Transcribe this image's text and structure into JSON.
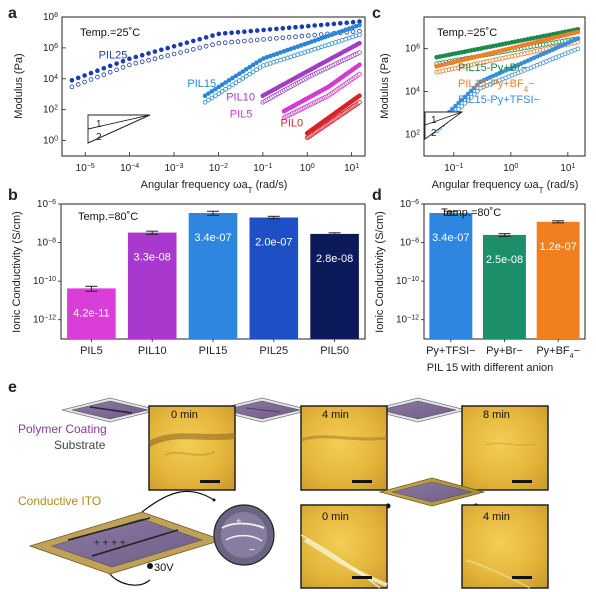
{
  "panel_labels": {
    "a": "a",
    "b": "b",
    "c": "c",
    "d": "d",
    "e": "e"
  },
  "colors": {
    "PIL25": "#1a3cb0",
    "PIL15": "#2c86d6",
    "PIL10": "#a23cc7",
    "PIL5": "#d43ad3",
    "PIL0": "#d8232a",
    "Br": "#1c8a4e",
    "BF4": "#f07f27",
    "TFSI": "#3a8fdc",
    "bar_PIL5": "#d93ed8",
    "bar_PIL10": "#a938cf",
    "bar_PIL15": "#2f86e0",
    "bar_PIL25": "#1f4fc4",
    "bar_PIL50": "#0c1a5c",
    "bar_TFSI": "#2f86e0",
    "bar_Br": "#1c8e6a",
    "bar_BF4": "#f07f1f"
  },
  "chart_data": [
    {
      "id": "a",
      "type": "scatter",
      "annotation": "Temp.=25˚C",
      "xlabel": "Angular frequency ωa",
      "xlabel_sub": "T",
      "xlabel_unit": " (rad/s)",
      "ylabel": "Modulus (Pa)",
      "xscale": "log",
      "yscale": "log",
      "xlim": [
        3e-06,
        20
      ],
      "ylim": [
        0.1,
        100000000
      ],
      "xticks": [
        {
          "v": 1e-05,
          "b": "10",
          "e": "−5"
        },
        {
          "v": 0.0001,
          "b": "10",
          "e": "−4"
        },
        {
          "v": 0.001,
          "b": "10",
          "e": "−3"
        },
        {
          "v": 0.01,
          "b": "10",
          "e": "−2"
        },
        {
          "v": 0.1,
          "b": "10",
          "e": "−1"
        },
        {
          "v": 1,
          "b": "10",
          "e": "0"
        },
        {
          "v": 10,
          "b": "10",
          "e": "1"
        }
      ],
      "yticks": [
        {
          "v": 1,
          "b": "10",
          "e": "0"
        },
        {
          "v": 100,
          "b": "10",
          "e": "2"
        },
        {
          "v": 10000,
          "b": "10",
          "e": "4"
        },
        {
          "v": 1000000,
          "b": "10",
          "e": "6"
        },
        {
          "v": 100000000,
          "b": "10",
          "e": "8"
        }
      ],
      "slope_labels": [
        "1",
        "2"
      ],
      "series": [
        {
          "name": "PIL25",
          "label_pos": [
            2e-05,
            200000
          ],
          "xrange": [
            5e-06,
            15
          ],
          "storage": [
            [
              5e-06,
              8000
            ],
            [
              0.0001,
              200000
            ],
            [
              0.01,
              8000000
            ],
            [
              15,
              50000000
            ]
          ],
          "loss": [
            [
              5e-06,
              3000
            ],
            [
              0.0001,
              80000
            ],
            [
              0.01,
              2000000
            ],
            [
              15,
              12000000
            ]
          ]
        },
        {
          "name": "PIL15",
          "label_pos": [
            0.002,
            3000
          ],
          "xrange": [
            0.005,
            15
          ],
          "storage": [
            [
              0.005,
              800
            ],
            [
              0.1,
              200000
            ],
            [
              15,
              30000000
            ]
          ],
          "loss": [
            [
              0.005,
              300
            ],
            [
              0.1,
              70000
            ],
            [
              15,
              7000000
            ]
          ]
        },
        {
          "name": "PIL10",
          "label_pos": [
            0.015,
            400
          ],
          "xrange": [
            0.1,
            15
          ],
          "storage": [
            [
              0.1,
              800
            ],
            [
              1,
              30000
            ],
            [
              15,
              2000000
            ]
          ],
          "loss": [
            [
              0.1,
              300
            ],
            [
              1,
              12000
            ],
            [
              15,
              500000
            ]
          ]
        },
        {
          "name": "PIL5",
          "label_pos": [
            0.018,
            30
          ],
          "xrange": [
            0.3,
            15
          ],
          "storage": [
            [
              0.3,
              80
            ],
            [
              3,
              3000
            ],
            [
              15,
              80000
            ]
          ],
          "loss": [
            [
              0.3,
              30
            ],
            [
              3,
              800
            ],
            [
              15,
              20000
            ]
          ]
        },
        {
          "name": "PIL0",
          "label_pos": [
            0.25,
            8
          ],
          "xrange": [
            1,
            15
          ],
          "storage": [
            [
              1,
              3
            ],
            [
              15,
              800
            ]
          ],
          "loss": [
            [
              1,
              1.5
            ],
            [
              15,
              300
            ]
          ]
        }
      ]
    },
    {
      "id": "b",
      "type": "bar",
      "annotation": "Temp.=80˚C",
      "ylabel": "Ionic Conductivity (S/cm)",
      "yscale": "log",
      "ylim": [
        1e-13,
        1e-06
      ],
      "yticks": [
        {
          "v": 1e-12,
          "b": "10",
          "e": "−12"
        },
        {
          "v": 1e-10,
          "b": "10",
          "e": "−10"
        },
        {
          "v": 1e-08,
          "b": "10",
          "e": "−8"
        },
        {
          "v": 1e-06,
          "b": "10",
          "e": "−6"
        }
      ],
      "categories": [
        "PIL5",
        "PIL10",
        "PIL15",
        "PIL25",
        "PIL50"
      ],
      "values": [
        4.2e-11,
        3.3e-08,
        3.4e-07,
        2e-07,
        2.8e-08
      ],
      "value_labels": [
        "4.2e-11",
        "3.3e-08",
        "3.4e-07",
        "2.0e-07",
        "2.8e-08"
      ],
      "errors": [
        1.2e-11,
        6e-09,
        8e-08,
        3e-08,
        4e-09
      ]
    },
    {
      "id": "c",
      "type": "scatter",
      "annotation": "Temp.=25˚C",
      "xlabel": "Angular frequency ωa",
      "xlabel_sub": "T",
      "xlabel_unit": " (rad/s)",
      "ylabel": "Modulus (Pa)",
      "xscale": "log",
      "yscale": "log",
      "xlim": [
        0.03,
        20
      ],
      "ylim": [
        10,
        30000000
      ],
      "xticks": [
        {
          "v": 0.1,
          "b": "10",
          "e": "−1"
        },
        {
          "v": 1,
          "b": "10",
          "e": "0"
        },
        {
          "v": 10,
          "b": "10",
          "e": "1"
        }
      ],
      "yticks": [
        {
          "v": 100,
          "b": "10",
          "e": "2"
        },
        {
          "v": 10000,
          "b": "10",
          "e": "4"
        },
        {
          "v": 1000000,
          "b": "10",
          "e": "6"
        }
      ],
      "slope_labels": [
        "1",
        "2"
      ],
      "series": [
        {
          "name": "PIL15-Py+Br−",
          "xrange": [
            0.05,
            15
          ],
          "storage": [
            [
              0.05,
              400000
            ],
            [
              15,
              8000000
            ]
          ],
          "loss": [
            [
              0.05,
              200000
            ],
            [
              15,
              3000000
            ]
          ]
        },
        {
          "name": "PIL15-Py+BF",
          "name_sub": "4",
          "name_tail": "−",
          "xrange": [
            0.05,
            15
          ],
          "storage": [
            [
              0.05,
              150000
            ],
            [
              15,
              6000000
            ]
          ],
          "loss": [
            [
              0.05,
              80000
            ],
            [
              15,
              2000000
            ]
          ]
        },
        {
          "name": "PIL15-Py+TFSI−",
          "xrange": [
            0.05,
            15
          ],
          "storage": [
            [
              0.05,
              300
            ],
            [
              0.3,
              30000
            ],
            [
              15,
              3000000
            ]
          ],
          "loss": [
            [
              0.05,
              150
            ],
            [
              0.3,
              15000
            ],
            [
              15,
              1000000
            ]
          ]
        }
      ]
    },
    {
      "id": "d",
      "type": "bar",
      "annotation": "Temp.=80˚C",
      "ylabel": "Ionic Conductivity (S/cm)",
      "xlabel": "PIL 15 with different anion",
      "yscale": "log",
      "ylim": [
        1e-13,
        1e-06
      ],
      "yticks": [
        {
          "v": 1e-12,
          "b": "10",
          "e": "−12"
        },
        {
          "v": 1e-10,
          "b": "10",
          "e": "−10"
        },
        {
          "v": 1e-08,
          "b": "10",
          "e": "−8"
        },
        {
          "v": 1e-06,
          "b": "10",
          "e": "−6"
        }
      ],
      "categories": [
        "Py+TFSI−",
        "Py+Br−",
        "Py+BF4−"
      ],
      "category_parts": [
        {
          "main": "Py+TFSI−"
        },
        {
          "main": "Py+Br−"
        },
        {
          "main": "Py+BF",
          "sub": "4",
          "tail": "−"
        }
      ],
      "values": [
        3.4e-07,
        2.5e-08,
        1.2e-07
      ],
      "value_labels": [
        "3.4e-07",
        "2.5e-08",
        "1.2e-07"
      ],
      "errors": [
        8e-08,
        4e-09,
        1.5e-08
      ]
    }
  ],
  "panel_e": {
    "polymer_coating": "Polymer Coating",
    "substrate": "Substrate",
    "conductive_ito": "Conductive ITO",
    "voltage": "30V",
    "top_times": [
      "0 min",
      "4 min",
      "8 min"
    ],
    "bottom_times": [
      "0 min",
      "4 min"
    ]
  }
}
